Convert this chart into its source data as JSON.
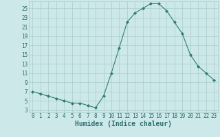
{
  "x": [
    0,
    1,
    2,
    3,
    4,
    5,
    6,
    7,
    8,
    9,
    10,
    11,
    12,
    13,
    14,
    15,
    16,
    17,
    18,
    19,
    20,
    21,
    22,
    23
  ],
  "y": [
    7,
    6.5,
    6,
    5.5,
    5,
    4.5,
    4.5,
    4,
    3.5,
    6,
    11,
    16.5,
    22,
    24,
    25,
    26,
    26,
    24.5,
    22,
    19.5,
    15,
    12.5,
    11,
    9.5
  ],
  "line_color": "#2e7d6e",
  "marker": "D",
  "marker_size": 2.0,
  "bg_color": "#cce8e8",
  "grid_color": "#aacccc",
  "xlabel": "Humidex (Indice chaleur)",
  "yticks": [
    3,
    5,
    7,
    9,
    11,
    13,
    15,
    17,
    19,
    21,
    23,
    25
  ],
  "xticks": [
    0,
    1,
    2,
    3,
    4,
    5,
    6,
    7,
    8,
    9,
    10,
    11,
    12,
    13,
    14,
    15,
    16,
    17,
    18,
    19,
    20,
    21,
    22,
    23
  ],
  "ylim": [
    2.5,
    26.5
  ],
  "xlim": [
    -0.5,
    23.5
  ],
  "tick_color": "#2e6e6e",
  "tick_label_fontsize": 5.5,
  "xlabel_fontsize": 7.0,
  "linewidth": 0.8
}
